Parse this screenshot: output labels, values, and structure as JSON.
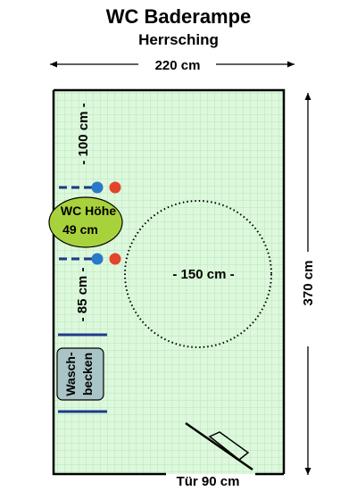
{
  "title": "WC Baderampe",
  "subtitle": "Herrsching",
  "dimensions": {
    "width": "220 cm",
    "height": "370 cm",
    "door": "Tür 90 cm",
    "turning_circle": "- 150 cm -",
    "clearance_top": "- 100 cm -",
    "clearance_bottom": "- 85 cm -"
  },
  "toilet": {
    "line1": "WC Höhe",
    "line2": "49 cm"
  },
  "sink": {
    "line1": "Wasch-",
    "line2": "becken"
  },
  "colors": {
    "floor": "#ddf8dd",
    "grid": "#b6e6b6",
    "toilet": "#a8d23c",
    "sink": "#a9c4c6",
    "grab_bar": "#1f3a8c",
    "knob_blue": "#2a78c8",
    "knob_red": "#e2452b"
  }
}
